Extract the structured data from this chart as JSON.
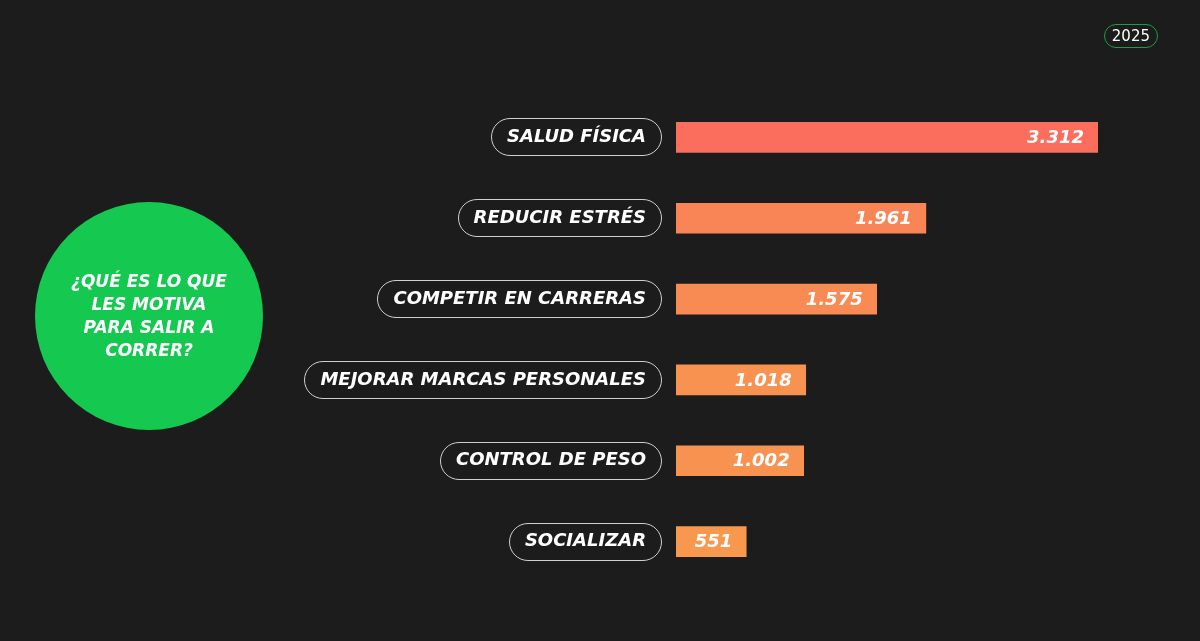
{
  "chart_data": {
    "type": "bar",
    "orientation": "horizontal",
    "title": "¿QUÉ ES LO QUE LES MOTIVA PARA SALIR A CORRER?",
    "categories": [
      "SALUD FÍSICA",
      "REDUCIR ESTRÉS",
      "COMPETIR EN CARRERAS",
      "MEJORAR MARCAS PERSONALES",
      "CONTROL DE PESO",
      "SOCIALIZAR"
    ],
    "values": [
      3312,
      1961,
      1575,
      1018,
      1002,
      551
    ],
    "value_labels": [
      "3.312",
      "1.961",
      "1.575",
      "1.018",
      "1.002",
      "551"
    ],
    "colors": [
      "#fb6d5d",
      "#f98556",
      "#f88a54",
      "#f79250",
      "#f79250",
      "#f7984e"
    ],
    "tick_labels": "y",
    "annotations": [
      "2025"
    ]
  }
}
